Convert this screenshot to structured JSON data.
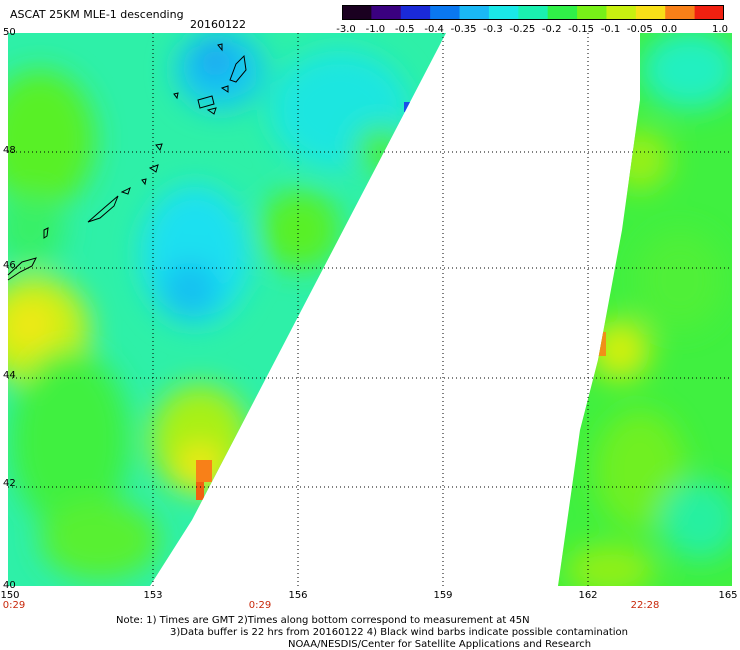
{
  "header": {
    "title": "ASCAT 25KM MLE-1 descending",
    "date": "20160122"
  },
  "colorbar": {
    "labels": [
      "-3.0",
      "-1.0",
      "-0.5",
      "-0.4",
      "-0.35",
      "-0.3",
      "-0.25",
      "-0.2",
      "-0.15",
      "-0.1",
      "-0.05",
      "0.0",
      "1.0"
    ],
    "colors": [
      "#1a0020",
      "#3a0080",
      "#1a2ad8",
      "#0a78f0",
      "#1ab8f5",
      "#1ae8e8",
      "#1af0b0",
      "#30f048",
      "#78f018",
      "#c8f010",
      "#f8e018",
      "#f88018",
      "#f02010"
    ]
  },
  "axes": {
    "y_ticks": [
      "40",
      "42",
      "44",
      "46",
      "48",
      "50"
    ],
    "x_ticks": [
      "150",
      "153",
      "156",
      "159",
      "162",
      "165"
    ],
    "time_labels": [
      "0:29",
      "0:29",
      "22:28"
    ]
  },
  "notes": {
    "line1": "Note: 1) Times are GMT 2)Times along bottom correspond to measurement at 45N",
    "line2": "3)Data buffer is 22 hrs from 20160122 4) Black wind barbs indicate possible contamination",
    "line3": "NOAA/NESDIS/Center for Satellite Applications and Research"
  }
}
